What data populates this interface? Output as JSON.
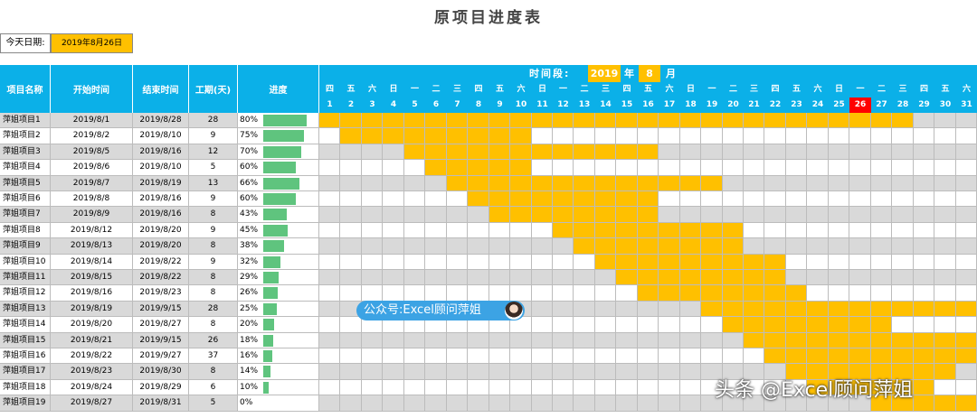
{
  "title": "原项目进度表",
  "today": {
    "label": "今天日期:",
    "value": "2019年8月26日",
    "day": 26
  },
  "headers": {
    "name": "项目名称",
    "start": "开始时间",
    "end": "结束时间",
    "duration": "工期(天)",
    "progress": "进度"
  },
  "period": {
    "label": "时间段:",
    "year": "2019",
    "year_unit": "年",
    "month": "8",
    "month_unit": "月"
  },
  "weekdays": [
    "四",
    "五",
    "六",
    "日",
    "一",
    "二",
    "三",
    "四",
    "五",
    "六",
    "日",
    "一",
    "二",
    "三",
    "四",
    "五",
    "六",
    "日",
    "一",
    "二",
    "三",
    "四",
    "五",
    "六",
    "日",
    "一",
    "二",
    "三",
    "四",
    "五",
    "六"
  ],
  "days": [
    1,
    2,
    3,
    4,
    5,
    6,
    7,
    8,
    9,
    10,
    11,
    12,
    13,
    14,
    15,
    16,
    17,
    18,
    19,
    20,
    21,
    22,
    23,
    24,
    25,
    26,
    27,
    28,
    29,
    30,
    31
  ],
  "projects": [
    {
      "name": "萍姐项目1",
      "start": "2019/8/1",
      "end": "2019/8/28",
      "duration": "28",
      "progress": "80%",
      "progress_value": 0.8,
      "start_day": 1,
      "end_day": 28
    },
    {
      "name": "萍姐项目2",
      "start": "2019/8/2",
      "end": "2019/8/10",
      "duration": "9",
      "progress": "75%",
      "progress_value": 0.75,
      "start_day": 2,
      "end_day": 10
    },
    {
      "name": "萍姐项目3",
      "start": "2019/8/5",
      "end": "2019/8/16",
      "duration": "12",
      "progress": "70%",
      "progress_value": 0.7,
      "start_day": 5,
      "end_day": 16
    },
    {
      "name": "萍姐项目4",
      "start": "2019/8/6",
      "end": "2019/8/10",
      "duration": "5",
      "progress": "60%",
      "progress_value": 0.6,
      "start_day": 6,
      "end_day": 10
    },
    {
      "name": "萍姐项目5",
      "start": "2019/8/7",
      "end": "2019/8/19",
      "duration": "13",
      "progress": "66%",
      "progress_value": 0.66,
      "start_day": 7,
      "end_day": 19
    },
    {
      "name": "萍姐项目6",
      "start": "2019/8/8",
      "end": "2019/8/16",
      "duration": "9",
      "progress": "60%",
      "progress_value": 0.6,
      "start_day": 8,
      "end_day": 16
    },
    {
      "name": "萍姐项目7",
      "start": "2019/8/9",
      "end": "2019/8/16",
      "duration": "8",
      "progress": "43%",
      "progress_value": 0.43,
      "start_day": 9,
      "end_day": 16
    },
    {
      "name": "萍姐项目8",
      "start": "2019/8/12",
      "end": "2019/8/20",
      "duration": "9",
      "progress": "45%",
      "progress_value": 0.45,
      "start_day": 12,
      "end_day": 20
    },
    {
      "name": "萍姐项目9",
      "start": "2019/8/13",
      "end": "2019/8/20",
      "duration": "8",
      "progress": "38%",
      "progress_value": 0.38,
      "start_day": 13,
      "end_day": 20
    },
    {
      "name": "萍姐项目10",
      "start": "2019/8/14",
      "end": "2019/8/22",
      "duration": "9",
      "progress": "32%",
      "progress_value": 0.32,
      "start_day": 14,
      "end_day": 22
    },
    {
      "name": "萍姐项目11",
      "start": "2019/8/15",
      "end": "2019/8/22",
      "duration": "8",
      "progress": "29%",
      "progress_value": 0.29,
      "start_day": 15,
      "end_day": 22
    },
    {
      "name": "萍姐项目12",
      "start": "2019/8/16",
      "end": "2019/8/23",
      "duration": "8",
      "progress": "26%",
      "progress_value": 0.26,
      "start_day": 16,
      "end_day": 23
    },
    {
      "name": "萍姐项目13",
      "start": "2019/8/19",
      "end": "2019/9/15",
      "duration": "28",
      "progress": "25%",
      "progress_value": 0.25,
      "start_day": 19,
      "end_day": 31
    },
    {
      "name": "萍姐项目14",
      "start": "2019/8/20",
      "end": "2019/8/27",
      "duration": "8",
      "progress": "20%",
      "progress_value": 0.2,
      "start_day": 20,
      "end_day": 27
    },
    {
      "name": "萍姐项目15",
      "start": "2019/8/21",
      "end": "2019/9/15",
      "duration": "26",
      "progress": "18%",
      "progress_value": 0.18,
      "start_day": 21,
      "end_day": 31
    },
    {
      "name": "萍姐项目16",
      "start": "2019/8/22",
      "end": "2019/9/27",
      "duration": "37",
      "progress": "16%",
      "progress_value": 0.16,
      "start_day": 22,
      "end_day": 31
    },
    {
      "name": "萍姐项目17",
      "start": "2019/8/23",
      "end": "2019/8/30",
      "duration": "8",
      "progress": "14%",
      "progress_value": 0.14,
      "start_day": 23,
      "end_day": 30
    },
    {
      "name": "萍姐项目18",
      "start": "2019/8/24",
      "end": "2019/8/29",
      "duration": "6",
      "progress": "10%",
      "progress_value": 0.1,
      "start_day": 24,
      "end_day": 29
    },
    {
      "name": "萍姐项目19",
      "start": "2019/8/27",
      "end": "2019/8/31",
      "duration": "5",
      "progress": "0%",
      "progress_value": 0.0,
      "start_day": 27,
      "end_day": 31
    }
  ],
  "colors": {
    "header": "#0BB0E8",
    "highlight": "#FFC000",
    "today": "#FF0000",
    "progress_bar": "#5FC47E",
    "row_alt": "#D9D9D9"
  },
  "badge": "公众号:Excel顾问萍姐",
  "watermark": "头条 @Excel顾问萍姐"
}
